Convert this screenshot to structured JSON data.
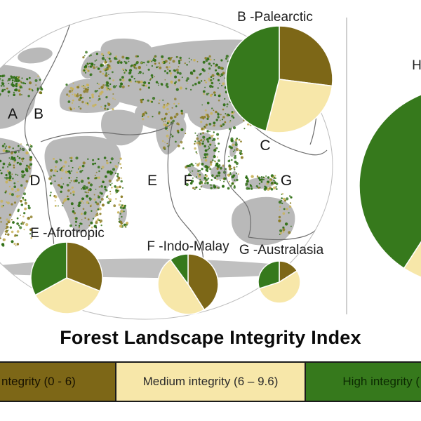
{
  "figure_title": "Forest Landscape Integrity Index",
  "colors": {
    "low": "#7d6717",
    "medium": "#f7e7a9",
    "high": "#36791c",
    "land": "#b9b9b9",
    "antarctica": "#c0c0c0",
    "boundary_line": "#6e6e6e",
    "divider": "#cfcfcf"
  },
  "map": {
    "realm_letters": [
      "A",
      "B",
      "C",
      "D",
      "E",
      "F",
      "G"
    ]
  },
  "legend": {
    "items": [
      {
        "key": "low",
        "text": "ntegrity (0 - 6)",
        "color": "#7d6717"
      },
      {
        "key": "medium",
        "text": "Medium integrity (6 – 9.6)",
        "color": "#f7e7a9"
      },
      {
        "key": "high",
        "text": "High integrity (",
        "color": "#36791c"
      }
    ]
  },
  "chart_data": [
    {
      "type": "pie",
      "id": "palearctic",
      "label": "B -Palearctic",
      "rotation_deg": 0,
      "slices": [
        {
          "key": "low",
          "name": "Low integrity",
          "pct": 27
        },
        {
          "key": "medium",
          "name": "Medium integrity",
          "pct": 27
        },
        {
          "key": "high",
          "name": "High integrity",
          "pct": 46
        }
      ]
    },
    {
      "type": "pie",
      "id": "afrotropic",
      "label": "E -Afrotropic",
      "rotation_deg": 0,
      "slices": [
        {
          "key": "low",
          "name": "Low integrity",
          "pct": 31
        },
        {
          "key": "medium",
          "name": "Medium integrity",
          "pct": 36
        },
        {
          "key": "high",
          "name": "High integrity",
          "pct": 33
        }
      ]
    },
    {
      "type": "pie",
      "id": "indo-malay",
      "label": "F -Indo-Malay",
      "rotation_deg": 0,
      "slices": [
        {
          "key": "low",
          "name": "Low integrity",
          "pct": 41
        },
        {
          "key": "medium",
          "name": "Medium integrity",
          "pct": 49
        },
        {
          "key": "high",
          "name": "High integrity",
          "pct": 10
        }
      ]
    },
    {
      "type": "pie",
      "id": "australasia",
      "label": "G -Australasia",
      "rotation_deg": 0,
      "slices": [
        {
          "key": "low",
          "name": "Low integrity",
          "pct": 16
        },
        {
          "key": "medium",
          "name": "Medium integrity",
          "pct": 54
        },
        {
          "key": "high",
          "name": "High integrity",
          "pct": 30
        }
      ]
    },
    {
      "type": "pie",
      "id": "h-realm",
      "label": "H",
      "rotation_deg": 213,
      "slices": [
        {
          "key": "high",
          "name": "High integrity",
          "pct": 82
        },
        {
          "key": "medium",
          "name": "Medium integrity",
          "pct": 18
        }
      ]
    }
  ]
}
